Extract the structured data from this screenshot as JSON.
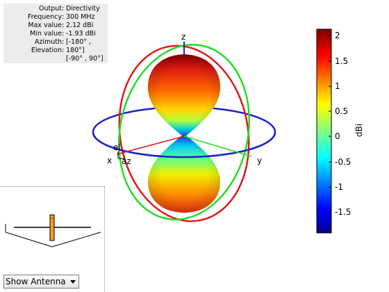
{
  "info_panel": {
    "rows": [
      {
        "key": "Output",
        "value": "Directivity"
      },
      {
        "key": "Frequency",
        "value": "300 MHz"
      },
      {
        "key": "Max value",
        "value": "2.12 dBi"
      },
      {
        "key": "Min value",
        "value": "-1.93 dBi"
      },
      {
        "key": "Azimuth",
        "value": "[-180° ,"
      },
      {
        "key": "Elevation",
        "value": "180°]"
      }
    ],
    "extra_line": "[-90° , 90°]"
  },
  "axes": {
    "x": "x",
    "y": "y",
    "z": "z",
    "el": "el",
    "az": "az"
  },
  "colorbar": {
    "label": "dBi",
    "ticks": [
      "2",
      "1.5",
      "1",
      "0.5",
      "0",
      "-0.5",
      "-1",
      "-1.5"
    ],
    "tick_values": [
      2,
      1.5,
      1,
      0.5,
      0,
      -0.5,
      -1,
      -1.5
    ],
    "min": -1.93,
    "max": 2.12
  },
  "colors": {
    "circle_xy": "#1a22c8",
    "circle_xz": "#e01818",
    "circle_yz": "#22dd22",
    "dipole_element": "#f0a020"
  },
  "view_selector": {
    "selected": "Show Antenna"
  }
}
